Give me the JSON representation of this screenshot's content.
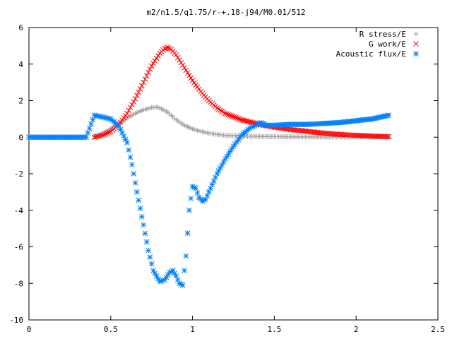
{
  "chart_data": {
    "type": "scatter",
    "title": "m2/n1.5/q1.75/r-+.18-j94/M0.01/512",
    "xlabel": "",
    "ylabel": "",
    "xlim": [
      0,
      2.5
    ],
    "ylim": [
      -10,
      6
    ],
    "x_ticks": [
      "0",
      "0.5",
      "1",
      "1.5",
      "2",
      "2.5"
    ],
    "y_ticks": [
      "-10",
      "-8",
      "-6",
      "-4",
      "-2",
      "0",
      "2",
      "4",
      "6"
    ],
    "grid": false,
    "legend_position": "top-right",
    "series": [
      {
        "name": "R stress/E",
        "marker": "plus",
        "color": "#a0a0a0",
        "x": [
          0.4,
          0.45,
          0.5,
          0.55,
          0.6,
          0.65,
          0.7,
          0.75,
          0.78,
          0.8,
          0.85,
          0.9,
          0.95,
          1.0,
          1.05,
          1.1,
          1.15,
          1.2,
          1.3,
          1.4,
          1.5,
          1.6,
          1.7,
          1.8,
          1.9,
          2.0,
          2.1,
          2.2
        ],
        "y": [
          0.05,
          0.2,
          0.45,
          0.75,
          1.05,
          1.3,
          1.5,
          1.62,
          1.65,
          1.6,
          1.35,
          0.95,
          0.65,
          0.45,
          0.32,
          0.22,
          0.15,
          0.1,
          0.06,
          0.04,
          0.03,
          0.02,
          0.02,
          0.01,
          0.01,
          0.01,
          0.01,
          0.01
        ]
      },
      {
        "name": "G work/E",
        "marker": "cross",
        "color": "#ff0000",
        "x": [
          0.4,
          0.45,
          0.5,
          0.55,
          0.6,
          0.65,
          0.7,
          0.75,
          0.8,
          0.83,
          0.85,
          0.87,
          0.9,
          0.95,
          1.0,
          1.05,
          1.1,
          1.15,
          1.2,
          1.3,
          1.4,
          1.5,
          1.6,
          1.7,
          1.8,
          1.9,
          2.0,
          2.1,
          2.2
        ],
        "y": [
          0.0,
          0.1,
          0.3,
          0.7,
          1.3,
          2.1,
          3.0,
          3.9,
          4.6,
          4.85,
          4.9,
          4.8,
          4.5,
          3.8,
          3.1,
          2.5,
          2.0,
          1.6,
          1.3,
          0.95,
          0.72,
          0.55,
          0.42,
          0.32,
          0.22,
          0.15,
          0.1,
          0.06,
          0.03
        ]
      },
      {
        "name": "Acoustic flux/E",
        "marker": "star",
        "color": "#0080ff",
        "x": [
          0.0,
          0.05,
          0.1,
          0.15,
          0.2,
          0.25,
          0.3,
          0.35,
          0.4,
          0.45,
          0.5,
          0.55,
          0.6,
          0.63,
          0.66,
          0.7,
          0.73,
          0.76,
          0.8,
          0.83,
          0.86,
          0.88,
          0.9,
          0.92,
          0.94,
          0.96,
          0.98,
          1.0,
          1.02,
          1.04,
          1.06,
          1.08,
          1.1,
          1.15,
          1.2,
          1.25,
          1.3,
          1.35,
          1.4,
          1.42,
          1.45,
          1.5,
          1.6,
          1.7,
          1.8,
          1.9,
          2.0,
          2.1,
          2.2
        ],
        "y": [
          0.0,
          0.0,
          0.0,
          0.0,
          0.0,
          0.0,
          0.0,
          0.0,
          1.2,
          1.1,
          1.0,
          0.6,
          -0.3,
          -1.5,
          -3.0,
          -4.8,
          -6.2,
          -7.3,
          -7.9,
          -7.8,
          -7.4,
          -7.3,
          -7.6,
          -8.0,
          -8.1,
          -6.5,
          -4.0,
          -2.7,
          -2.8,
          -3.3,
          -3.5,
          -3.4,
          -3.0,
          -2.0,
          -1.2,
          -0.5,
          0.1,
          0.5,
          0.7,
          0.8,
          0.65,
          0.65,
          0.7,
          0.7,
          0.75,
          0.8,
          0.9,
          1.0,
          1.2
        ]
      }
    ]
  }
}
